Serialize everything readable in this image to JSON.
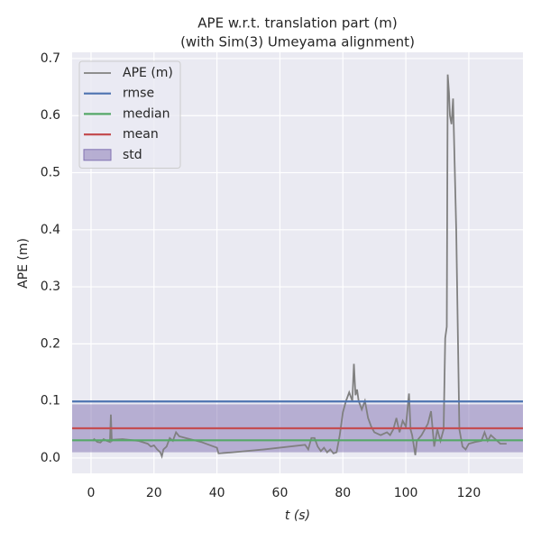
{
  "chart_data": {
    "type": "line",
    "title": "APE w.r.t. translation part (m)",
    "subtitle": "(with Sim(3) Umeyama alignment)",
    "xlabel": "t (s)",
    "ylabel": "APE (m)",
    "xlim": [
      -6,
      137.2
    ],
    "ylim": [
      -0.027,
      0.711
    ],
    "xticks": [
      0,
      20,
      40,
      60,
      80,
      100,
      120
    ],
    "yticks": [
      {
        "value": 0,
        "label": "0.0"
      },
      0.1,
      0.2,
      0.3,
      0.4,
      0.5,
      0.6,
      0.7
    ],
    "grid": true,
    "legend": "upper left",
    "series": [
      {
        "name": "APE (m)",
        "color": "#808080",
        "x": [
          0.5,
          1,
          2,
          3,
          4,
          5,
          6,
          6.3,
          6.6,
          7,
          10,
          15,
          18,
          19,
          20,
          21,
          22,
          22.5,
          23,
          24,
          25,
          26,
          27,
          28,
          30,
          35,
          40,
          40.5,
          45,
          55,
          68,
          69,
          70,
          71,
          72,
          73,
          74,
          75,
          76,
          77,
          78,
          79,
          80,
          81,
          82,
          83,
          83.5,
          84,
          84.5,
          85,
          86,
          87,
          88,
          89,
          90,
          92,
          94,
          95,
          96,
          97,
          98,
          99,
          100,
          101,
          101.5,
          102,
          103,
          103.5,
          105,
          107,
          108,
          109,
          110,
          111,
          112,
          112.5,
          113,
          113.3,
          113.7,
          114,
          114.5,
          115,
          116,
          117,
          118,
          119,
          120,
          122,
          124,
          125,
          126,
          127,
          128,
          130,
          132
        ],
        "values": [
          0.03,
          0.033,
          0.028,
          0.027,
          0.033,
          0.03,
          0.028,
          0.076,
          0.03,
          0.032,
          0.033,
          0.03,
          0.025,
          0.02,
          0.022,
          0.015,
          0.01,
          0.003,
          0.015,
          0.02,
          0.035,
          0.03,
          0.045,
          0.038,
          0.035,
          0.028,
          0.018,
          0.008,
          0.01,
          0.015,
          0.023,
          0.015,
          0.035,
          0.035,
          0.02,
          0.012,
          0.018,
          0.01,
          0.015,
          0.008,
          0.01,
          0.04,
          0.08,
          0.1,
          0.115,
          0.1,
          0.165,
          0.11,
          0.12,
          0.1,
          0.085,
          0.1,
          0.07,
          0.055,
          0.045,
          0.04,
          0.045,
          0.04,
          0.05,
          0.07,
          0.045,
          0.065,
          0.055,
          0.113,
          0.05,
          0.04,
          0.005,
          0.03,
          0.04,
          0.06,
          0.082,
          0.02,
          0.05,
          0.03,
          0.05,
          0.21,
          0.23,
          0.672,
          0.64,
          0.6,
          0.585,
          0.63,
          0.4,
          0.05,
          0.02,
          0.015,
          0.025,
          0.028,
          0.03,
          0.045,
          0.03,
          0.04,
          0.035,
          0.025,
          0.025
        ]
      }
    ],
    "stats": [
      {
        "name": "rmse",
        "color": "#4c72b0",
        "value": 0.099
      },
      {
        "name": "median",
        "color": "#55a868",
        "value": 0.031
      },
      {
        "name": "mean",
        "color": "#c44e52",
        "value": 0.052
      },
      {
        "name": "std",
        "color": "#8172b2",
        "value": 0.042
      }
    ]
  }
}
